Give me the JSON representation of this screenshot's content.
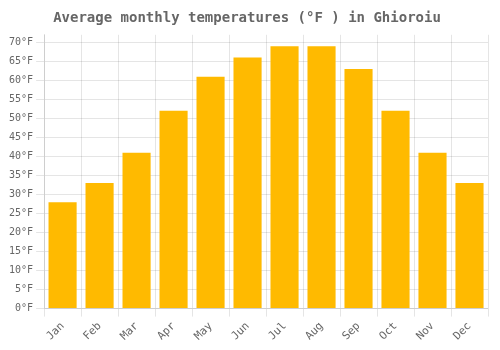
{
  "chart_data": {
    "type": "bar",
    "title": "Average monthly temperatures (°F ) in Ghioroiu",
    "categories": [
      "Jan",
      "Feb",
      "Mar",
      "Apr",
      "May",
      "Jun",
      "Jul",
      "Aug",
      "Sep",
      "Oct",
      "Nov",
      "Dec"
    ],
    "values": [
      28,
      33,
      41,
      52,
      61,
      66,
      69,
      69,
      63,
      52,
      41,
      33
    ],
    "color": "#FFBA00",
    "ylim": [
      0,
      72
    ],
    "yticks": [
      {
        "value": 0,
        "label": "0°F"
      },
      {
        "value": 5,
        "label": "5°F"
      },
      {
        "value": 10,
        "label": "10°F"
      },
      {
        "value": 15,
        "label": "15°F"
      },
      {
        "value": 20,
        "label": "20°F"
      },
      {
        "value": 25,
        "label": "25°F"
      },
      {
        "value": 30,
        "label": "30°F"
      },
      {
        "value": 35,
        "label": "35°F"
      },
      {
        "value": 40,
        "label": "40°F"
      },
      {
        "value": 45,
        "label": "45°F"
      },
      {
        "value": 50,
        "label": "50°F"
      },
      {
        "value": 55,
        "label": "55°F"
      },
      {
        "value": 60,
        "label": "60°F"
      },
      {
        "value": 65,
        "label": "65°F"
      },
      {
        "value": 70,
        "label": "70°F"
      }
    ],
    "grid": true
  }
}
